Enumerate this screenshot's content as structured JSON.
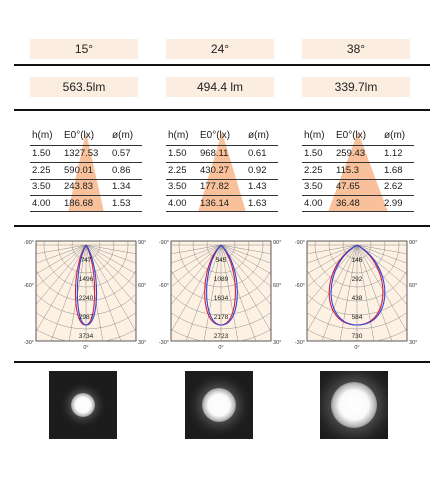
{
  "columns": [
    {
      "angle": "15°",
      "lumen": "563.5lm",
      "table": {
        "headers": [
          "h(m)",
          "E0°(lx)",
          "ø(m)"
        ],
        "rows": [
          [
            "1.50",
            "1327.53",
            "0.57"
          ],
          [
            "2.25",
            "590.01",
            "0.86"
          ],
          [
            "3.50",
            "243.83",
            "1.34"
          ],
          [
            "4.00",
            "186.68",
            "1.53"
          ]
        ]
      },
      "polar": {
        "labels": [
          "747",
          "1496",
          "2240",
          "2987",
          "3734"
        ],
        "angles": {
          "left_top": "-90°",
          "left_mid": "-60°",
          "left_bot": "-30°",
          "center": "0°",
          "right_bot": "30°",
          "right_mid": "60°",
          "right_top": "90°"
        }
      },
      "beam_size": 0.35
    },
    {
      "angle": "24°",
      "lumen": "494.4 lm",
      "table": {
        "headers": [
          "h(m)",
          "E0°(lx)",
          "ø(m)"
        ],
        "rows": [
          [
            "1.50",
            "968.11",
            "0.61"
          ],
          [
            "2.25",
            "430.27",
            "0.92"
          ],
          [
            "3.50",
            "177.82",
            "1.43"
          ],
          [
            "4.00",
            "136.14",
            "1.63"
          ]
        ]
      },
      "polar": {
        "labels": [
          "545",
          "1089",
          "1634",
          "2178",
          "2723"
        ],
        "angles": {
          "left_top": "-90°",
          "left_mid": "-60°",
          "left_bot": "-30°",
          "center": "0°",
          "right_bot": "30°",
          "right_mid": "60°",
          "right_top": "90°"
        }
      },
      "beam_size": 0.5
    },
    {
      "angle": "38°",
      "lumen": "339.7lm",
      "table": {
        "headers": [
          "h(m)",
          "E0°(lx)",
          "ø(m)"
        ],
        "rows": [
          [
            "1.50",
            "259.43",
            "1.12"
          ],
          [
            "2.25",
            "115.3",
            "1.68"
          ],
          [
            "3.50",
            "47.65",
            "2.62"
          ],
          [
            "4.00",
            "36.48",
            "2.99"
          ]
        ]
      },
      "polar": {
        "labels": [
          "146",
          "292",
          "438",
          "584",
          "730"
        ],
        "angles": {
          "left_top": "-90°",
          "left_mid": "-60°",
          "left_bot": "-30°",
          "center": "0°",
          "right_bot": "30°",
          "right_mid": "60°",
          "right_top": "90°"
        }
      },
      "beam_size": 0.68
    }
  ],
  "colors": {
    "header_bg": "#fbeee0",
    "cone": "#f7b68a",
    "polar_bg": "#fdf1e3",
    "curve_blue": "#3344dd",
    "curve_red": "#cc2244",
    "beam_bg": "#1c1c1c"
  }
}
